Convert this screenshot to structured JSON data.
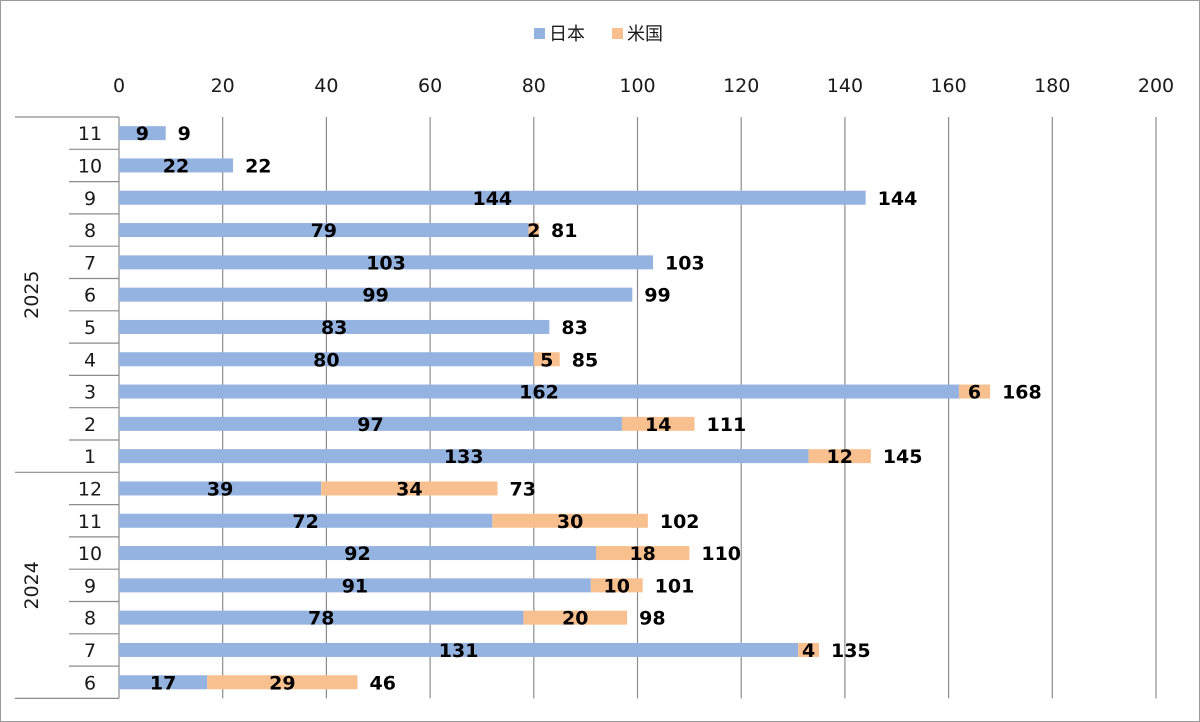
{
  "chart_data": {
    "type": "bar",
    "orientation": "horizontal",
    "stacked": true,
    "title": "",
    "xlim": [
      0,
      200
    ],
    "x_ticks": [
      0,
      20,
      40,
      60,
      80,
      100,
      120,
      140,
      160,
      180,
      200
    ],
    "x_axis_position": "top",
    "grid": true,
    "legend_position": "top",
    "colors": {
      "japan": "#95b3e0",
      "usa": "#f9c08f"
    },
    "groups": [
      {
        "label": "2025",
        "months": [
          "11",
          "10",
          "9",
          "8",
          "7",
          "6",
          "5",
          "4",
          "3",
          "2",
          "1"
        ]
      },
      {
        "label": "2024",
        "months": [
          "12",
          "11",
          "10",
          "9",
          "8",
          "7",
          "6"
        ]
      }
    ],
    "categories": [
      "2025-11",
      "2025-10",
      "2025-9",
      "2025-8",
      "2025-7",
      "2025-6",
      "2025-5",
      "2025-4",
      "2025-3",
      "2025-2",
      "2025-1",
      "2024-12",
      "2024-11",
      "2024-10",
      "2024-9",
      "2024-8",
      "2024-7",
      "2024-6"
    ],
    "series": [
      {
        "name": "日本",
        "color_key": "japan",
        "values": [
          9,
          22,
          144,
          79,
          103,
          99,
          83,
          80,
          162,
          97,
          133,
          39,
          72,
          92,
          91,
          78,
          131,
          17
        ]
      },
      {
        "name": "米国",
        "color_key": "usa",
        "values": [
          0,
          0,
          0,
          2,
          0,
          0,
          0,
          5,
          6,
          14,
          12,
          34,
          30,
          18,
          10,
          20,
          4,
          29
        ]
      }
    ],
    "totals": [
      9,
      22,
      144,
      81,
      103,
      99,
      83,
      85,
      168,
      111,
      145,
      73,
      102,
      110,
      101,
      98,
      135,
      46
    ]
  }
}
